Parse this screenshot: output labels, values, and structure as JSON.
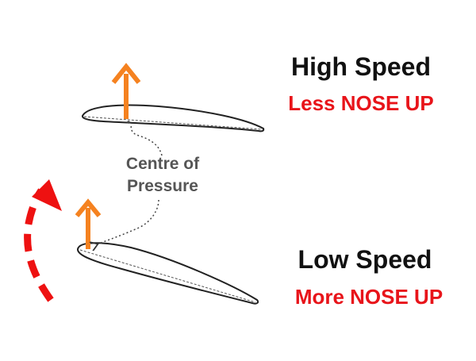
{
  "high_speed": {
    "title": "High Speed",
    "subtitle": "Less NOSE UP"
  },
  "low_speed": {
    "title": "Low Speed",
    "subtitle": "More NOSE UP"
  },
  "centre_of_pressure": {
    "line1": "Centre of",
    "line2": "Pressure"
  },
  "colors": {
    "lift_arrow": "#f58220",
    "rotation_arrow": "#ee1111",
    "subtitle_text": "#e8141a",
    "airfoil_outline": "#222222",
    "label_text": "#555555"
  },
  "icons": {
    "lift_arrow": "up-arrow-icon",
    "rotation_arrow": "curved-dashed-arrow-icon"
  }
}
